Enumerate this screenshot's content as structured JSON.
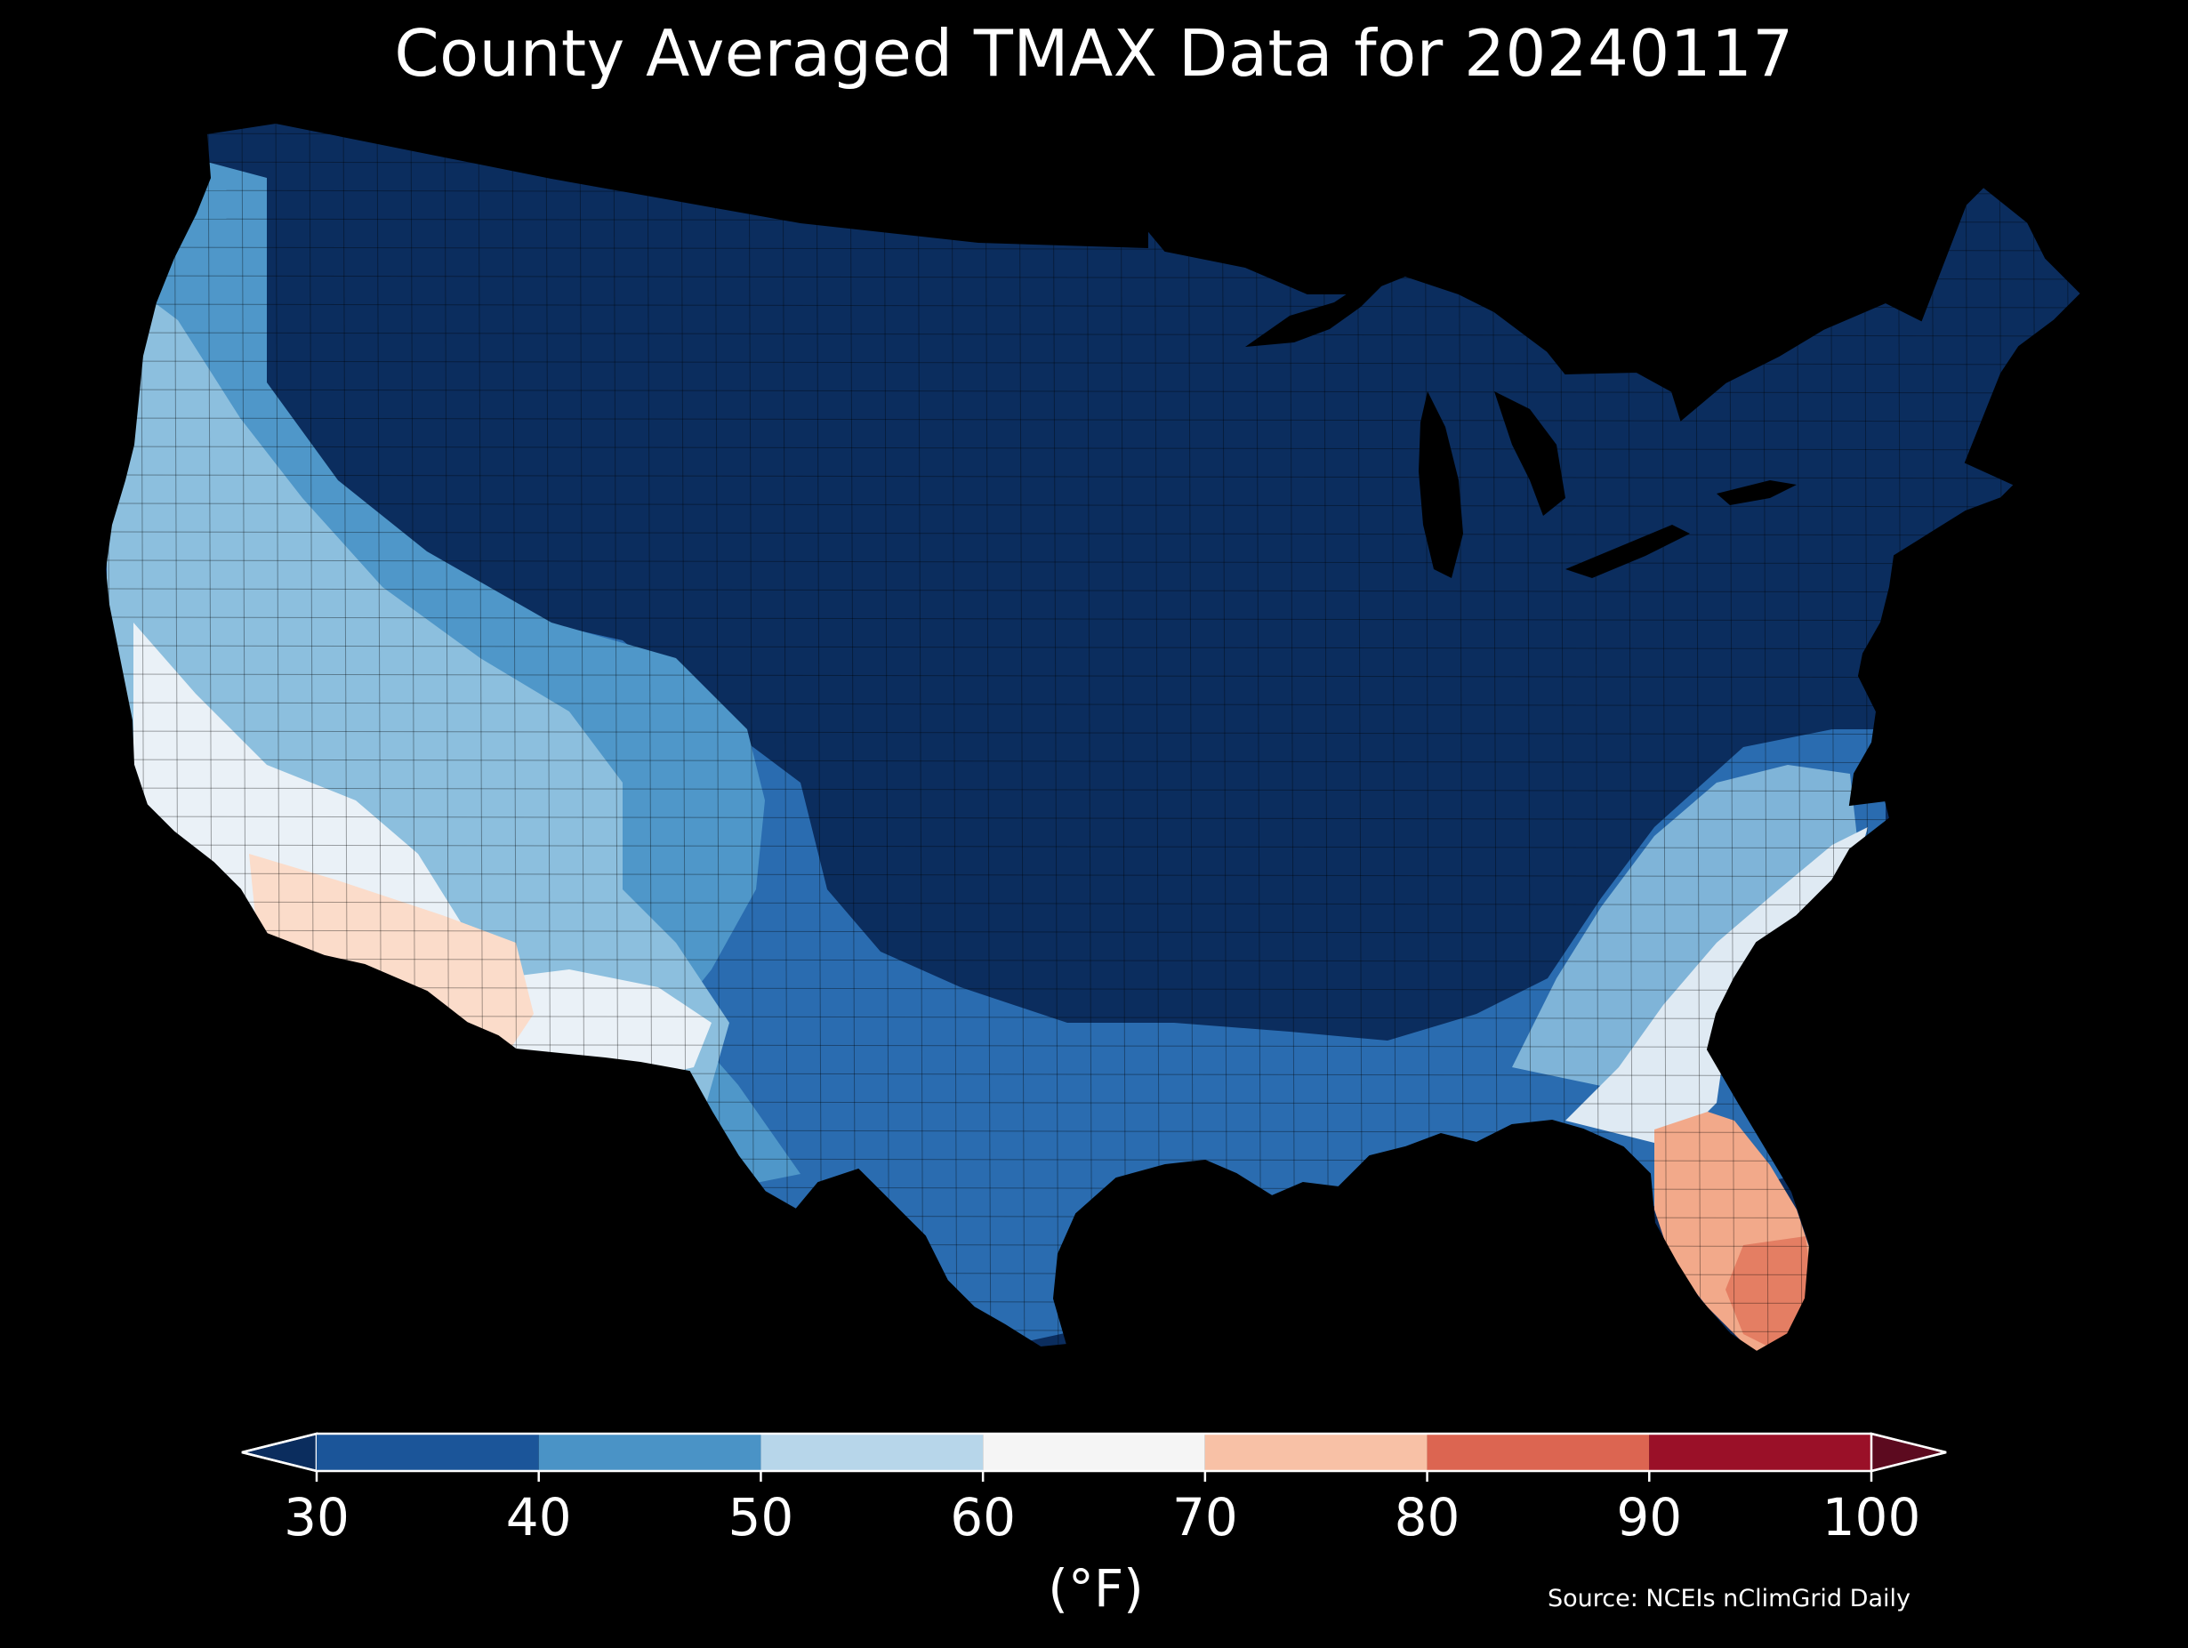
{
  "title": "County Averaged TMAX Data for 20240117",
  "colorbar": {
    "unit": "(°F)",
    "ticks": [
      "30",
      "40",
      "50",
      "60",
      "70",
      "80",
      "90",
      "100"
    ],
    "bins": [
      {
        "range": [
          30,
          40
        ],
        "color": "#1b5599"
      },
      {
        "range": [
          40,
          50
        ],
        "color": "#4a93c6"
      },
      {
        "range": [
          50,
          60
        ],
        "color": "#b7d6ea"
      },
      {
        "range": [
          60,
          70
        ],
        "color": "#f5f5f5"
      },
      {
        "range": [
          70,
          80
        ],
        "color": "#f8c1a6"
      },
      {
        "range": [
          80,
          90
        ],
        "color": "#dc6551"
      },
      {
        "range": [
          90,
          100
        ],
        "color": "#9a1028"
      }
    ],
    "under_color": "#0b2d5e",
    "over_color": "#5c0a1f"
  },
  "source": "Source: NCEIs nClimGrid Daily",
  "map": {
    "region": "Contiguous United States",
    "background": "#000000",
    "county_border_color": "#1a1a1a",
    "regions": [
      {
        "name": "north-central-and-east",
        "color": "#0b2d5e"
      },
      {
        "name": "southern-plains-gulf",
        "color": "#2a6cb0"
      },
      {
        "name": "mountain-west",
        "color": "#4f97c9"
      },
      {
        "name": "pacific-coast-interior",
        "color": "#8cbfde"
      },
      {
        "name": "southwest-lowlands",
        "color": "#eaf1f7"
      },
      {
        "name": "southern-arizona",
        "color": "#fbdcca"
      },
      {
        "name": "southeast-piedmont",
        "color": "#7fb4d8"
      },
      {
        "name": "southeast-coastal",
        "color": "#dfeaf3"
      },
      {
        "name": "florida",
        "color": "#f2a98a"
      },
      {
        "name": "south-florida",
        "color": "#e47e63"
      }
    ]
  }
}
